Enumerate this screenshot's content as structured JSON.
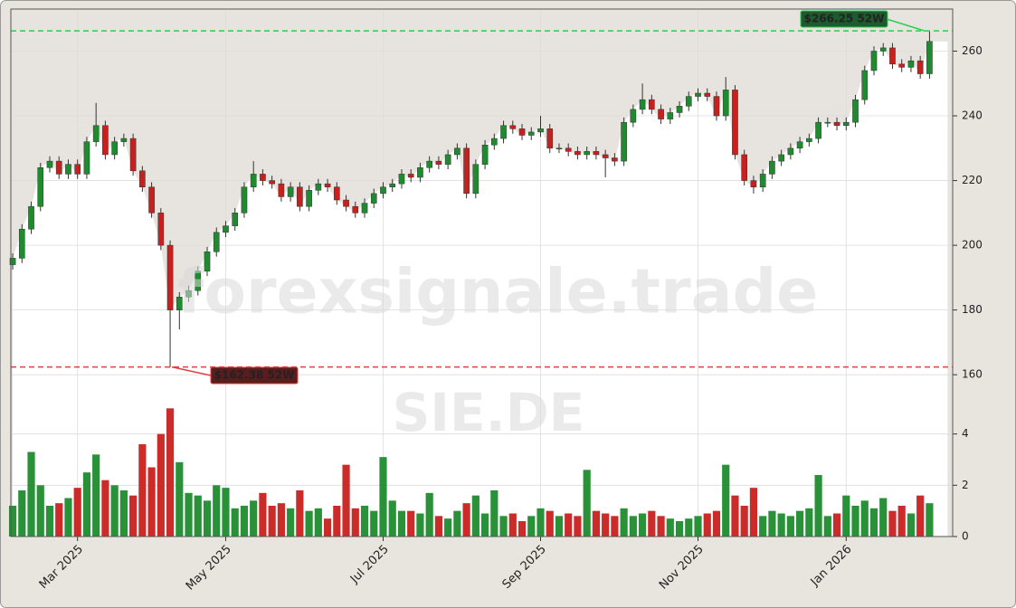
{
  "chart_data": {
    "type": "candlestick",
    "watermark": "forexsignale.trade",
    "symbol": "SIE.DE",
    "up_color": "#1e8c2e",
    "down_color": "#c8201e",
    "grid": true,
    "xlim": [
      -0.2,
      101.5
    ],
    "xticks": [
      {
        "value": 7,
        "label": "Mar 2025"
      },
      {
        "value": 23,
        "label": "May 2025"
      },
      {
        "value": 40,
        "label": "Jul 2025"
      },
      {
        "value": 57,
        "label": "Sep 2025"
      },
      {
        "value": 74,
        "label": "Nov 2025"
      },
      {
        "value": 90,
        "label": "Jan 2026"
      }
    ],
    "ylim": [
      110,
      273
    ],
    "yticks": [
      160,
      180,
      200,
      220,
      240,
      260
    ],
    "y2lim": [
      0,
      5.4
    ],
    "y2ticks": [
      0,
      2,
      4
    ],
    "open": [
      194,
      196,
      205,
      212,
      224,
      226,
      222,
      225,
      222,
      232,
      237,
      228,
      232,
      233,
      223,
      218,
      210,
      200,
      180,
      184,
      186,
      192,
      198,
      204,
      206,
      210,
      218,
      222,
      220,
      219,
      215,
      218,
      212,
      217,
      219,
      218,
      214,
      212,
      210,
      213,
      216,
      218,
      219,
      222,
      221,
      224,
      226,
      225,
      228,
      230,
      216,
      225,
      231,
      233,
      237,
      236,
      234,
      235,
      236,
      230,
      230,
      229,
      228,
      229,
      228,
      227,
      226,
      238,
      242,
      245,
      242,
      239,
      241,
      243,
      246,
      247,
      246,
      240,
      248,
      228,
      220,
      218,
      222,
      226,
      228,
      230,
      232,
      233,
      238,
      238,
      237,
      238,
      245,
      254,
      260,
      261,
      256,
      255,
      257,
      253
    ],
    "high": [
      197.5,
      206.5,
      213.5,
      225.5,
      227.5,
      227.5,
      226.5,
      226.5,
      233.5,
      244,
      238.5,
      233.5,
      234.5,
      234.5,
      224.5,
      219.5,
      211.5,
      201.5,
      185.5,
      187.5,
      193.5,
      199.5,
      205.5,
      207.5,
      211.5,
      219.5,
      226,
      223.5,
      221.5,
      220.5,
      219.5,
      219.5,
      218.5,
      220.5,
      220.5,
      219.5,
      215.5,
      213.5,
      214.5,
      217.5,
      219.5,
      220.5,
      223.5,
      223.5,
      225.5,
      227.5,
      227.5,
      229.5,
      231.5,
      231.5,
      226.5,
      232.5,
      234.5,
      238.5,
      238.5,
      237.5,
      236.5,
      240,
      237.5,
      231.5,
      231.5,
      230.5,
      230.5,
      230.5,
      229.5,
      228.5,
      239.5,
      243.5,
      250,
      246.5,
      243.5,
      242.5,
      244.5,
      247.5,
      248.5,
      248.5,
      247.5,
      252,
      249.5,
      229.5,
      221.5,
      223.5,
      227.5,
      229.5,
      231.5,
      233.5,
      234.5,
      239.5,
      239.5,
      239.5,
      239.5,
      246.5,
      255.5,
      261.5,
      262.5,
      262.5,
      257.5,
      258.5,
      258.5,
      266.25
    ],
    "low": [
      192.5,
      194.5,
      203.5,
      210.5,
      222.5,
      220.5,
      220.5,
      220.5,
      220.5,
      230.5,
      226.5,
      226.5,
      230.5,
      221.5,
      216.5,
      208.5,
      198.5,
      162.38,
      174,
      182.5,
      184.5,
      190.5,
      196.5,
      202.5,
      204.5,
      208.5,
      216.5,
      218.5,
      217.5,
      213.5,
      213.5,
      210.5,
      210.5,
      215.5,
      216.5,
      212.5,
      210.5,
      208.5,
      208.5,
      211.5,
      214.5,
      216.5,
      217.5,
      219.5,
      219.5,
      222.5,
      223.5,
      223.5,
      226.5,
      214.5,
      214.5,
      223.5,
      229.5,
      231.5,
      234.5,
      232.5,
      232.5,
      233.5,
      228.5,
      228.5,
      227.5,
      226.5,
      226.5,
      226.5,
      221,
      224.5,
      224.5,
      236.5,
      240.5,
      240.5,
      237.5,
      237.5,
      239.5,
      241.5,
      244.5,
      244.5,
      238.5,
      238.5,
      226.5,
      218.5,
      216,
      216.5,
      220.5,
      224.5,
      226.5,
      228.5,
      230.5,
      231.5,
      236.5,
      235.5,
      235.5,
      236.5,
      243.5,
      252.5,
      258.5,
      254.5,
      253.5,
      253.5,
      251.5,
      251.5
    ],
    "close": [
      196,
      205,
      212,
      224,
      226,
      222,
      225,
      222,
      232,
      237,
      228,
      232,
      233,
      223,
      218,
      210,
      200,
      180,
      184,
      186,
      192,
      198,
      204,
      206,
      210,
      218,
      222,
      220,
      219,
      215,
      218,
      212,
      217,
      219,
      218,
      214,
      212,
      210,
      213,
      216,
      218,
      219,
      222,
      221,
      224,
      226,
      225,
      228,
      230,
      216,
      225,
      231,
      233,
      237,
      236,
      234,
      235,
      236,
      230,
      230,
      229,
      228,
      229,
      228,
      227,
      226,
      238,
      242,
      245,
      242,
      239,
      241,
      243,
      246,
      247,
      246,
      240,
      248,
      228,
      220,
      218,
      222,
      226,
      228,
      230,
      232,
      233,
      238,
      238,
      237,
      238,
      245,
      254,
      260,
      261,
      256,
      255,
      257,
      253,
      263
    ],
    "volume": [
      1.2,
      1.8,
      3.3,
      2.0,
      1.2,
      1.3,
      1.5,
      1.9,
      2.5,
      3.2,
      2.2,
      2.0,
      1.8,
      1.6,
      3.6,
      2.7,
      4.0,
      5.0,
      2.9,
      1.7,
      1.6,
      1.4,
      2.0,
      1.9,
      1.1,
      1.2,
      1.4,
      1.7,
      1.2,
      1.3,
      1.1,
      1.8,
      1.0,
      1.1,
      0.7,
      1.2,
      2.8,
      1.1,
      1.2,
      1.0,
      3.1,
      1.4,
      1.0,
      1.0,
      0.9,
      1.7,
      0.8,
      0.7,
      1.0,
      1.3,
      1.6,
      0.9,
      1.8,
      0.8,
      0.9,
      0.6,
      0.8,
      1.1,
      1.0,
      0.8,
      0.9,
      0.8,
      2.6,
      1.0,
      0.9,
      0.8,
      1.1,
      0.8,
      0.9,
      1.0,
      0.8,
      0.7,
      0.6,
      0.7,
      0.8,
      0.9,
      1.0,
      2.8,
      1.6,
      1.2,
      1.9,
      0.8,
      1.0,
      0.9,
      0.8,
      1.0,
      1.1,
      2.4,
      0.8,
      0.9,
      1.6,
      1.2,
      1.4,
      1.1,
      1.5,
      1.0,
      1.2,
      0.9,
      1.6,
      1.3
    ],
    "annotations": [
      {
        "label": "$266.25 52W",
        "value": 266.25,
        "color": "#2ecc55"
      },
      {
        "label": "$162.38 52W",
        "value": 162.38,
        "color": "#e04040"
      }
    ]
  }
}
